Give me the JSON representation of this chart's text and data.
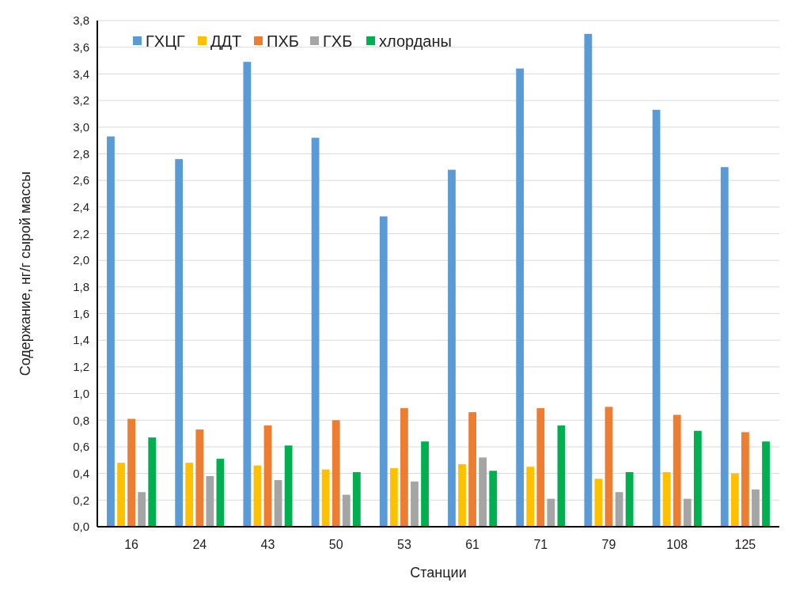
{
  "chart_data": {
    "type": "bar",
    "xlabel": "Станции",
    "ylabel": "Содержание, нг/г сырой массы",
    "categories": [
      "16",
      "24",
      "43",
      "50",
      "53",
      "61",
      "71",
      "79",
      "108",
      "125"
    ],
    "series": [
      {
        "name": "ГХЦГ",
        "color": "#5b9bd5",
        "values": [
          2.93,
          2.76,
          3.49,
          2.92,
          2.33,
          2.68,
          3.44,
          3.7,
          3.13,
          2.7
        ]
      },
      {
        "name": "ДДТ",
        "color": "#ffc000",
        "values": [
          0.48,
          0.48,
          0.46,
          0.43,
          0.44,
          0.47,
          0.45,
          0.36,
          0.41,
          0.4
        ]
      },
      {
        "name": "ПХБ",
        "color": "#ed7d31",
        "values": [
          0.81,
          0.73,
          0.76,
          0.8,
          0.89,
          0.86,
          0.89,
          0.9,
          0.84,
          0.71
        ]
      },
      {
        "name": "ГХБ",
        "color": "#a5a5a5",
        "values": [
          0.26,
          0.38,
          0.35,
          0.24,
          0.34,
          0.52,
          0.21,
          0.26,
          0.21,
          0.28
        ]
      },
      {
        "name": "хлорданы",
        "color": "#00b050",
        "values": [
          0.67,
          0.51,
          0.61,
          0.41,
          0.64,
          0.42,
          0.76,
          0.41,
          0.72,
          0.64
        ]
      }
    ],
    "ylim": [
      0,
      3.8
    ],
    "yticks": [
      {
        "value": 0,
        "label": "0,0"
      },
      {
        "value": 0.2,
        "label": "0,2"
      },
      {
        "value": 0.4,
        "label": "0,4"
      },
      {
        "value": 0.6,
        "label": "0,6"
      },
      {
        "value": 0.8,
        "label": "0,8"
      },
      {
        "value": 1.0,
        "label": "1,0"
      },
      {
        "value": 1.2,
        "label": "1,2"
      },
      {
        "value": 1.4,
        "label": "1,4"
      },
      {
        "value": 1.6,
        "label": "1,6"
      },
      {
        "value": 1.8,
        "label": "1,8"
      },
      {
        "value": 2.0,
        "label": "2,0"
      },
      {
        "value": 2.2,
        "label": "2,2"
      },
      {
        "value": 2.4,
        "label": "2,4"
      },
      {
        "value": 2.6,
        "label": "2,6"
      },
      {
        "value": 2.8,
        "label": "2,8"
      },
      {
        "value": 3.0,
        "label": "3,0"
      },
      {
        "value": 3.2,
        "label": "3,2"
      },
      {
        "value": 3.4,
        "label": "3,4"
      },
      {
        "value": 3.6,
        "label": "3,6"
      },
      {
        "value": 3.8,
        "label": "3,8"
      }
    ],
    "grid": "y",
    "legend": "top left"
  }
}
